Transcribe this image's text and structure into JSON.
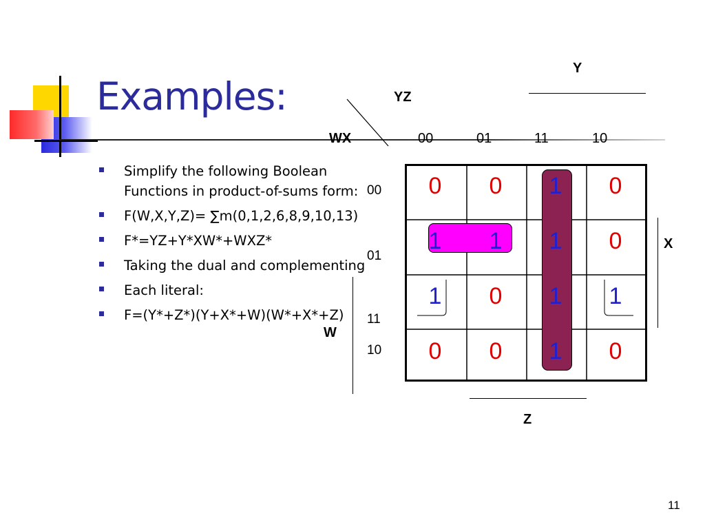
{
  "slide": {
    "title": "Examples:",
    "page_number": "11",
    "accent_color": "#2b2b9b"
  },
  "bullets": [
    "Simplify the following Boolean Functions in product-of-sums form:",
    "F(W,X,Y,Z)= ∑m(0,1,2,6,8,9,10,13)",
    "F*=YZ+Y*XW*+WXZ*",
    "Taking the dual and complementing",
    "Each literal:",
    "F=(Y*+Z*)(Y+X*+W)(W*+X*+Z)"
  ],
  "kmap": {
    "col_var": "YZ",
    "row_var": "WX",
    "col_headers": [
      "00",
      "01",
      "11",
      "10"
    ],
    "row_headers": [
      "00",
      "01",
      "11",
      "10"
    ],
    "cells": [
      [
        "0",
        "0",
        "1",
        "0"
      ],
      [
        "1",
        "1",
        "1",
        "0"
      ],
      [
        "1",
        "0",
        "1",
        "1"
      ],
      [
        "0",
        "0",
        "1",
        "0"
      ]
    ],
    "brace_labels": {
      "top": "Y",
      "right": "X",
      "left": "W",
      "bottom": "Z"
    },
    "group_colors": {
      "pair_group": "#ff00ff",
      "column_group": "#8b2252"
    },
    "value_colors": {
      "zero": "#e00000",
      "one": "#2020d0"
    }
  }
}
